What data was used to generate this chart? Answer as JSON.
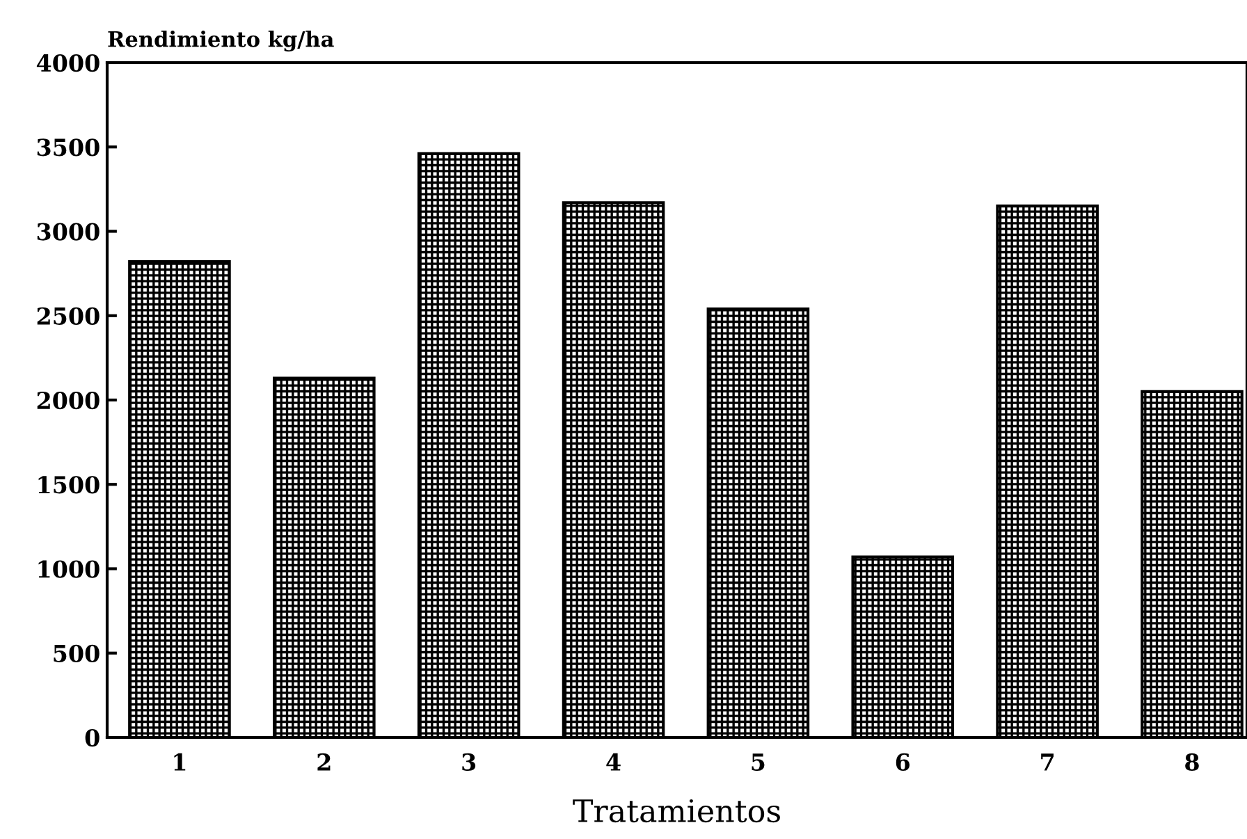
{
  "chart_data": {
    "type": "bar",
    "title": "Rendimiento kg/ha",
    "xlabel": "Tratamientos",
    "categories": [
      "1",
      "2",
      "3",
      "4",
      "5",
      "6",
      "7",
      "8"
    ],
    "values": [
      2820,
      2130,
      3460,
      3170,
      2540,
      1070,
      3150,
      2050
    ],
    "color": "#000000",
    "ylim": [
      0,
      4000
    ],
    "yticks": [
      0,
      500,
      1000,
      1500,
      2000,
      2500,
      3000,
      3500,
      4000
    ],
    "grid": false,
    "legend": false
  }
}
